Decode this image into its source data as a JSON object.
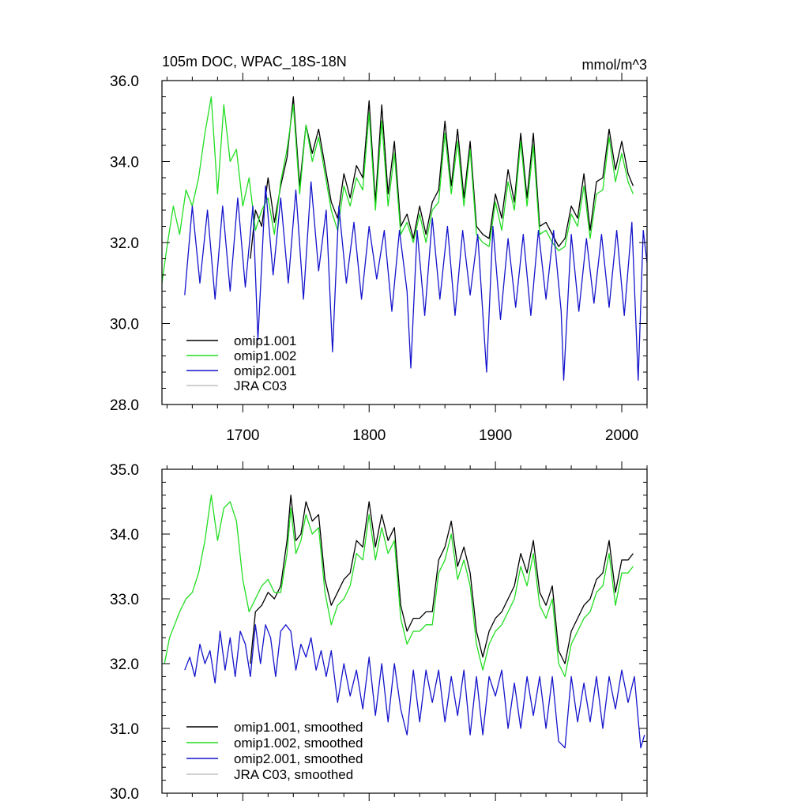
{
  "colors": {
    "omip1_001": "#000000",
    "omip1_002": "#22dd22",
    "omip2_001": "#1414cc",
    "jra_c03": "#c0c0c0"
  },
  "chart_data": [
    {
      "type": "line",
      "title": "105m DOC, WPAC_18S-18N",
      "units": "mmol/m^3",
      "xlim": [
        1636,
        2020
      ],
      "ylim": [
        28.0,
        36.0
      ],
      "xticks": [
        1700,
        1800,
        1900,
        2000
      ],
      "xtick_labels": [
        "1700",
        "1800",
        "1900",
        "2000"
      ],
      "yticks": [
        28.0,
        30.0,
        32.0,
        34.0,
        36.0
      ],
      "ytick_labels": [
        "28.0",
        "30.0",
        "32.0",
        "34.0",
        "36.0"
      ],
      "legend_position": "bottom-left",
      "series": [
        {
          "name": "omip1.001",
          "color_key": "omip1_001",
          "x": [
            1706,
            1710,
            1715,
            1720,
            1725,
            1730,
            1735,
            1740,
            1745,
            1750,
            1755,
            1760,
            1765,
            1770,
            1775,
            1780,
            1785,
            1790,
            1795,
            1800,
            1805,
            1810,
            1815,
            1820,
            1825,
            1830,
            1835,
            1840,
            1845,
            1850,
            1855,
            1860,
            1865,
            1870,
            1875,
            1880,
            1885,
            1890,
            1895,
            1900,
            1905,
            1910,
            1915,
            1920,
            1925,
            1930,
            1935,
            1940,
            1945,
            1950,
            1955,
            1960,
            1965,
            1970,
            1975,
            1980,
            1985,
            1990,
            1995,
            2000,
            2005,
            2009
          ],
          "y": [
            31.6,
            32.8,
            32.4,
            33.6,
            32.5,
            33.4,
            34.1,
            35.6,
            33.4,
            34.9,
            34.2,
            34.8,
            33.9,
            33.0,
            32.6,
            33.7,
            33.1,
            33.9,
            33.6,
            35.5,
            33.0,
            35.4,
            33.2,
            34.5,
            32.4,
            32.7,
            32.1,
            32.9,
            32.2,
            33.0,
            33.3,
            35.0,
            33.4,
            34.8,
            33.1,
            34.5,
            32.4,
            32.2,
            32.1,
            33.2,
            32.6,
            33.8,
            33.0,
            34.7,
            33.1,
            34.7,
            32.4,
            32.5,
            32.2,
            31.9,
            32.1,
            32.9,
            32.6,
            33.7,
            32.3,
            33.5,
            33.6,
            34.8,
            33.8,
            34.5,
            33.7,
            33.4
          ]
        },
        {
          "name": "omip1.002",
          "color_key": "omip1_002",
          "x": [
            1636,
            1640,
            1645,
            1650,
            1655,
            1660,
            1665,
            1670,
            1675,
            1680,
            1685,
            1690,
            1695,
            1700,
            1705,
            1710,
            1715,
            1720,
            1725,
            1730,
            1735,
            1740,
            1745,
            1750,
            1755,
            1760,
            1765,
            1770,
            1775,
            1780,
            1785,
            1790,
            1795,
            1800,
            1805,
            1810,
            1815,
            1820,
            1825,
            1830,
            1835,
            1840,
            1845,
            1850,
            1855,
            1860,
            1865,
            1870,
            1875,
            1880,
            1885,
            1890,
            1895,
            1900,
            1905,
            1910,
            1915,
            1920,
            1925,
            1930,
            1935,
            1940,
            1945,
            1950,
            1955,
            1960,
            1965,
            1970,
            1975,
            1980,
            1985,
            1990,
            1995,
            2000,
            2005,
            2009
          ],
          "y": [
            31.0,
            31.9,
            32.9,
            32.2,
            33.3,
            32.9,
            33.6,
            34.7,
            35.6,
            33.2,
            35.4,
            34.0,
            34.3,
            32.9,
            33.6,
            32.3,
            32.8,
            33.1,
            32.2,
            33.5,
            34.3,
            35.4,
            33.2,
            34.9,
            34.0,
            34.6,
            33.7,
            32.8,
            32.3,
            33.4,
            32.9,
            33.6,
            33.3,
            35.2,
            32.8,
            35.0,
            32.9,
            34.2,
            32.2,
            32.5,
            32.0,
            32.7,
            32.0,
            32.8,
            33.0,
            34.7,
            33.2,
            34.5,
            32.9,
            34.3,
            32.2,
            32.0,
            31.9,
            33.0,
            32.3,
            33.5,
            32.8,
            34.5,
            32.9,
            34.4,
            32.2,
            32.3,
            32.0,
            31.8,
            31.9,
            32.7,
            32.4,
            33.4,
            32.1,
            33.2,
            33.3,
            34.6,
            33.5,
            34.2,
            33.5,
            33.2
          ]
        },
        {
          "name": "omip2.001",
          "color_key": "omip2_001",
          "x": [
            1654,
            1660,
            1666,
            1672,
            1678,
            1684,
            1690,
            1696,
            1702,
            1708,
            1712,
            1718,
            1724,
            1730,
            1736,
            1742,
            1748,
            1754,
            1760,
            1766,
            1771,
            1776,
            1782,
            1788,
            1794,
            1800,
            1806,
            1812,
            1818,
            1824,
            1830,
            1833,
            1838,
            1844,
            1850,
            1856,
            1862,
            1868,
            1874,
            1880,
            1886,
            1893,
            1898,
            1904,
            1910,
            1916,
            1922,
            1928,
            1934,
            1940,
            1946,
            1952,
            1954,
            1960,
            1966,
            1972,
            1978,
            1984,
            1990,
            1996,
            2002,
            2008,
            2013,
            2017,
            2020
          ],
          "y": [
            30.7,
            32.9,
            31.0,
            32.8,
            30.6,
            32.9,
            30.8,
            33.1,
            30.9,
            32.9,
            29.6,
            33.4,
            31.2,
            33.1,
            31.0,
            33.3,
            30.6,
            33.5,
            31.3,
            32.8,
            29.3,
            32.9,
            31.0,
            32.5,
            30.6,
            32.4,
            31.1,
            32.3,
            30.3,
            32.3,
            30.8,
            28.9,
            32.3,
            30.2,
            32.6,
            30.6,
            32.4,
            30.2,
            32.3,
            30.7,
            32.2,
            28.8,
            32.4,
            30.1,
            32.1,
            30.4,
            32.2,
            30.2,
            32.3,
            30.6,
            32.3,
            30.3,
            28.6,
            32.2,
            30.3,
            32.1,
            30.5,
            32.2,
            30.4,
            32.3,
            30.2,
            32.5,
            28.6,
            32.3,
            31.5
          ]
        },
        {
          "name": "JRA C03",
          "color_key": "jra_c03",
          "x": [],
          "y": []
        }
      ]
    },
    {
      "type": "line",
      "title": "",
      "units": "",
      "xlim": [
        1636,
        2020
      ],
      "ylim": [
        30.0,
        35.0
      ],
      "xticks": [
        1700,
        1800,
        1900,
        2000
      ],
      "xtick_labels": [],
      "yticks": [
        30.0,
        31.0,
        32.0,
        33.0,
        34.0,
        35.0
      ],
      "ytick_labels": [
        "30.0",
        "31.0",
        "32.0",
        "33.0",
        "34.0",
        "35.0"
      ],
      "legend_position": "bottom-left",
      "series": [
        {
          "name": "omip1.001, smoothed",
          "color_key": "omip1_001",
          "x": [
            1706,
            1710,
            1715,
            1720,
            1725,
            1730,
            1735,
            1738,
            1742,
            1746,
            1750,
            1755,
            1760,
            1765,
            1770,
            1775,
            1780,
            1785,
            1790,
            1795,
            1800,
            1805,
            1810,
            1815,
            1820,
            1825,
            1830,
            1835,
            1840,
            1845,
            1850,
            1855,
            1860,
            1865,
            1870,
            1875,
            1880,
            1885,
            1890,
            1895,
            1900,
            1905,
            1910,
            1915,
            1920,
            1925,
            1930,
            1935,
            1940,
            1945,
            1950,
            1955,
            1960,
            1965,
            1970,
            1975,
            1980,
            1985,
            1990,
            1995,
            2000,
            2005,
            2009
          ],
          "y": [
            32.0,
            32.8,
            32.9,
            33.1,
            33.0,
            33.2,
            33.9,
            34.6,
            33.9,
            34.0,
            34.5,
            34.2,
            34.3,
            33.3,
            32.9,
            33.1,
            33.3,
            33.4,
            33.9,
            33.8,
            34.5,
            33.8,
            34.3,
            33.9,
            34.1,
            32.9,
            32.5,
            32.7,
            32.7,
            32.8,
            32.8,
            33.6,
            33.8,
            34.2,
            33.5,
            33.8,
            33.4,
            32.5,
            32.1,
            32.5,
            32.7,
            32.8,
            33.0,
            33.2,
            33.7,
            33.4,
            33.9,
            33.1,
            32.9,
            33.2,
            32.2,
            32.0,
            32.5,
            32.7,
            32.9,
            33.0,
            33.3,
            33.4,
            33.9,
            33.1,
            33.6,
            33.6,
            33.7
          ]
        },
        {
          "name": "omip1.002, smoothed",
          "color_key": "omip1_002",
          "x": [
            1638,
            1642,
            1646,
            1650,
            1655,
            1660,
            1665,
            1670,
            1675,
            1680,
            1685,
            1690,
            1695,
            1700,
            1705,
            1710,
            1715,
            1720,
            1725,
            1730,
            1735,
            1738,
            1742,
            1746,
            1750,
            1755,
            1760,
            1765,
            1770,
            1775,
            1780,
            1785,
            1790,
            1795,
            1800,
            1805,
            1810,
            1815,
            1820,
            1825,
            1830,
            1835,
            1840,
            1845,
            1850,
            1855,
            1860,
            1865,
            1870,
            1875,
            1880,
            1885,
            1890,
            1895,
            1900,
            1905,
            1910,
            1915,
            1920,
            1925,
            1930,
            1935,
            1940,
            1945,
            1950,
            1955,
            1960,
            1965,
            1970,
            1975,
            1980,
            1985,
            1990,
            1995,
            2000,
            2005,
            2009
          ],
          "y": [
            32.0,
            32.4,
            32.6,
            32.8,
            33.0,
            33.1,
            33.4,
            33.9,
            34.6,
            33.9,
            34.4,
            34.5,
            34.2,
            33.3,
            32.8,
            33.0,
            33.2,
            33.3,
            33.1,
            33.1,
            33.7,
            34.4,
            33.7,
            33.9,
            34.3,
            34.0,
            34.1,
            33.1,
            32.6,
            32.9,
            33.0,
            33.2,
            33.7,
            33.6,
            34.3,
            33.6,
            34.1,
            33.7,
            33.9,
            32.7,
            32.3,
            32.5,
            32.5,
            32.6,
            32.6,
            33.4,
            33.6,
            34.0,
            33.3,
            33.6,
            33.2,
            32.3,
            31.9,
            32.3,
            32.5,
            32.6,
            32.8,
            33.0,
            33.5,
            33.2,
            33.7,
            32.9,
            32.7,
            33.0,
            32.0,
            31.8,
            32.3,
            32.5,
            32.7,
            32.8,
            33.1,
            33.2,
            33.7,
            32.9,
            33.4,
            33.4,
            33.5
          ]
        },
        {
          "name": "omip2.001, smoothed",
          "color_key": "omip2_001",
          "x": [
            1654,
            1658,
            1662,
            1666,
            1670,
            1674,
            1678,
            1682,
            1686,
            1690,
            1694,
            1698,
            1702,
            1706,
            1710,
            1714,
            1718,
            1722,
            1726,
            1730,
            1734,
            1738,
            1742,
            1746,
            1750,
            1754,
            1758,
            1762,
            1766,
            1770,
            1775,
            1780,
            1785,
            1790,
            1795,
            1800,
            1805,
            1810,
            1815,
            1820,
            1825,
            1830,
            1835,
            1840,
            1845,
            1850,
            1855,
            1860,
            1865,
            1870,
            1875,
            1880,
            1885,
            1890,
            1895,
            1900,
            1905,
            1910,
            1915,
            1920,
            1925,
            1930,
            1935,
            1940,
            1945,
            1950,
            1955,
            1960,
            1965,
            1970,
            1975,
            1980,
            1985,
            1990,
            1995,
            2000,
            2005,
            2010,
            2015,
            2018
          ],
          "y": [
            31.9,
            32.1,
            31.8,
            32.3,
            32.0,
            32.2,
            31.7,
            32.5,
            31.9,
            32.4,
            31.8,
            32.5,
            32.3,
            31.8,
            32.6,
            32.0,
            32.6,
            32.4,
            31.8,
            32.5,
            32.6,
            32.5,
            31.9,
            32.3,
            32.1,
            32.4,
            31.9,
            32.2,
            31.8,
            32.2,
            31.4,
            32.0,
            31.5,
            31.9,
            31.3,
            32.1,
            31.2,
            32.0,
            31.1,
            32.0,
            31.3,
            30.9,
            31.9,
            31.1,
            31.9,
            31.4,
            31.9,
            31.1,
            31.8,
            31.2,
            31.9,
            30.9,
            31.8,
            30.9,
            31.8,
            31.5,
            31.9,
            31.0,
            31.7,
            31.0,
            31.8,
            31.2,
            31.8,
            31.0,
            31.8,
            30.8,
            30.7,
            31.8,
            31.1,
            31.7,
            31.1,
            31.8,
            31.0,
            31.8,
            31.3,
            31.9,
            31.4,
            31.8,
            30.7,
            30.9
          ]
        },
        {
          "name": "JRA C03, smoothed",
          "color_key": "jra_c03",
          "x": [],
          "y": []
        }
      ]
    }
  ]
}
